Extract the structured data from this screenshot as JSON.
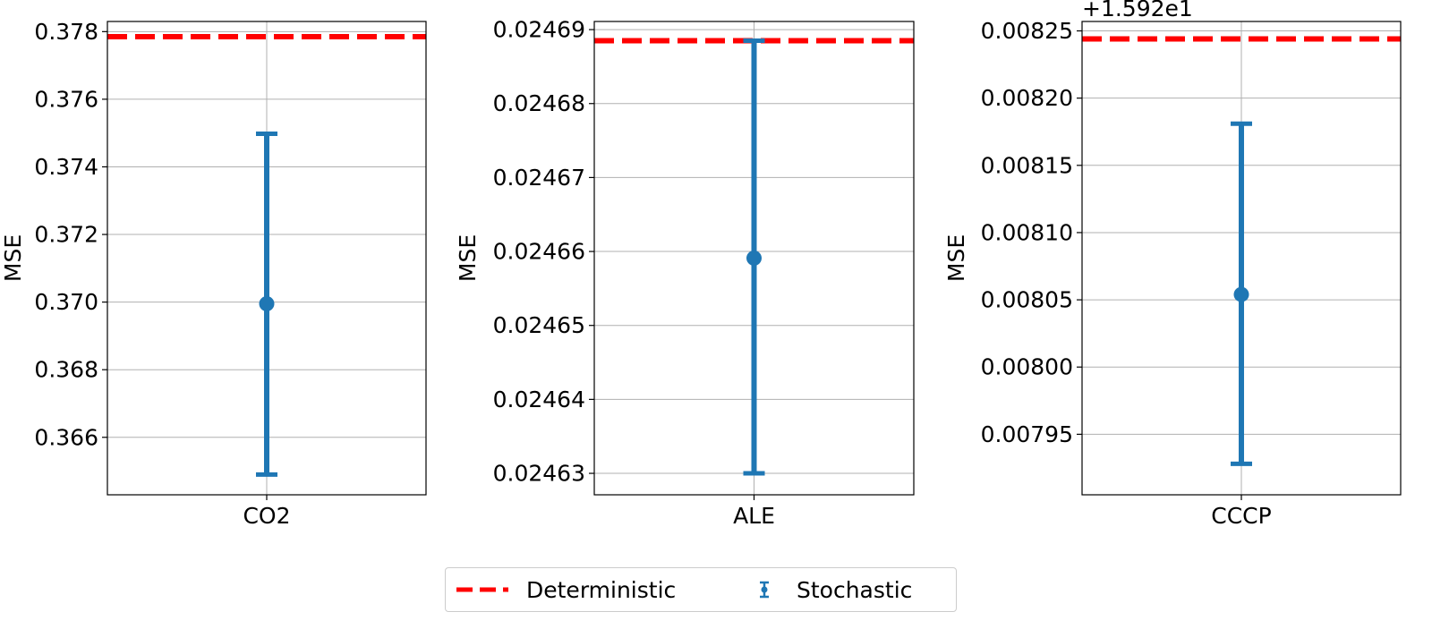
{
  "legend": {
    "deterministic_label": "Deterministic",
    "stochastic_label": "Stochastic"
  },
  "colors": {
    "deterministic": "#ff0000",
    "stochastic": "#1f77b4",
    "grid": "#b0b0b0"
  },
  "chart_data": [
    {
      "type": "errorbar",
      "category": "CO2",
      "ylabel": "MSE",
      "offset_label": "",
      "ylim": [
        0.3643,
        0.3783
      ],
      "yticks": [
        0.366,
        0.368,
        0.37,
        0.372,
        0.374,
        0.376,
        0.378
      ],
      "ytick_labels": [
        "0.366",
        "0.368",
        "0.370",
        "0.372",
        "0.374",
        "0.376",
        "0.378"
      ],
      "stochastic": {
        "mean": 0.36995,
        "lower": 0.3649,
        "upper": 0.37498
      },
      "deterministic": 0.37785,
      "grid": true
    },
    {
      "type": "errorbar",
      "category": "ALE",
      "ylabel": "MSE",
      "offset_label": "",
      "ylim": [
        0.0246271,
        0.0246911
      ],
      "yticks": [
        0.02463,
        0.02464,
        0.02465,
        0.02466,
        0.02467,
        0.02468,
        0.02469
      ],
      "ytick_labels": [
        "0.02463",
        "0.02464",
        "0.02465",
        "0.02466",
        "0.02467",
        "0.02468",
        "0.02469"
      ],
      "stochastic": {
        "mean": 0.0246591,
        "lower": 0.02463,
        "upper": 0.0246885
      },
      "deterministic": 0.0246885,
      "grid": true
    },
    {
      "type": "errorbar",
      "category": "CCCP",
      "ylabel": "MSE",
      "offset_label": "+1.592e1",
      "ylim": [
        0.007905,
        0.008257
      ],
      "yticks": [
        0.00795,
        0.008,
        0.00805,
        0.0081,
        0.00815,
        0.0082,
        0.00825
      ],
      "ytick_labels": [
        "0.00795",
        "0.00800",
        "0.00805",
        "0.00810",
        "0.00815",
        "0.00820",
        "0.00825"
      ],
      "stochastic": {
        "mean": 0.008054,
        "lower": 0.007928,
        "upper": 0.008181
      },
      "deterministic": 0.008244,
      "grid": true
    }
  ]
}
